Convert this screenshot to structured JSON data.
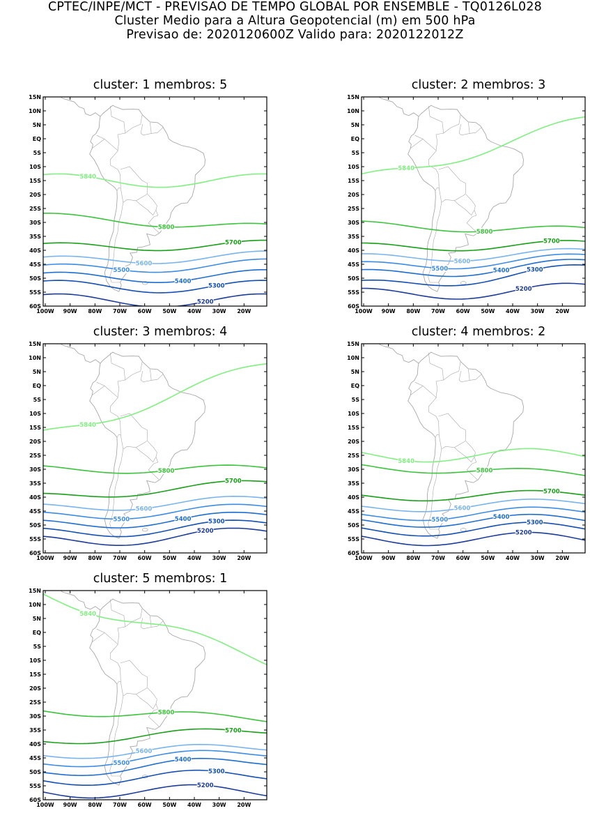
{
  "header": {
    "line1": "CPTEC/INPE/MCT - PREVISAO DE TEMPO GLOBAL POR ENSEMBLE - TQ0126L028",
    "line2": "Cluster Medio para a Altura Geopotencial (m) em 500 hPa",
    "line3": "Previsao de: 2020120600Z    Valido para: 2020122012Z"
  },
  "axes": {
    "lat_labels": [
      "15N",
      "10N",
      "5N",
      "EQ",
      "5S",
      "10S",
      "15S",
      "20S",
      "25S",
      "30S",
      "35S",
      "40S",
      "45S",
      "50S",
      "55S",
      "60S"
    ],
    "lon_labels": [
      "100W",
      "90W",
      "80W",
      "70W",
      "60W",
      "50W",
      "40W",
      "30W",
      "20W"
    ]
  },
  "colors": {
    "c5840": "#80f080",
    "c5800": "#3cc43c",
    "c5700": "#18a018",
    "c5600": "#78b4ee",
    "c5500": "#3c8ce6",
    "c5400": "#1e6ed2",
    "c5300": "#1450b4",
    "c5200": "#1c3c9c",
    "c5100": "#5a32b4",
    "coast": "#a8a8a8",
    "frame": "#000000"
  },
  "panels": [
    {
      "title": "cluster: 1   membros: 5",
      "contours": [
        {
          "value": "5840",
          "label": "5840",
          "lat_w": -15,
          "lat_e": -15
        },
        {
          "value": "5800",
          "label": "5800",
          "lat_w": -28,
          "lat_e": -32
        },
        {
          "value": "5700",
          "label": "5700",
          "lat_w": -39,
          "lat_e": -38
        },
        {
          "value": "5600",
          "label": "5600",
          "lat_w": -44,
          "lat_e": -42
        },
        {
          "value": "5500",
          "label": "5500",
          "lat_w": -47,
          "lat_e": -45
        },
        {
          "value": "5400",
          "label": "5400",
          "lat_w": -50,
          "lat_e": -49
        },
        {
          "value": "5300",
          "label": "5300",
          "lat_w": -53,
          "lat_e": -53
        },
        {
          "value": "5200",
          "label": "5200",
          "lat_w": -58,
          "lat_e": -58
        }
      ]
    },
    {
      "title": "cluster: 2   membros: 3",
      "contours": [
        {
          "value": "5840",
          "label": "5840",
          "lat_w": -15,
          "lat_e": 6
        },
        {
          "value": "5800",
          "label": "5800",
          "lat_w": -31,
          "lat_e": -33
        },
        {
          "value": "5700",
          "label": "5700",
          "lat_w": -39,
          "lat_e": -38
        },
        {
          "value": "5600",
          "label": "5600",
          "lat_w": -43,
          "lat_e": -41
        },
        {
          "value": "5500",
          "label": "5500",
          "lat_w": -46,
          "lat_e": -43
        },
        {
          "value": "5400",
          "label": "5400",
          "lat_w": -49,
          "lat_e": -45
        },
        {
          "value": "5300",
          "label": "5300",
          "lat_w": -53,
          "lat_e": -47
        },
        {
          "value": "5200",
          "label": "5200",
          "lat_w": -56,
          "lat_e": -54
        }
      ]
    },
    {
      "title": "cluster: 3   membros: 4",
      "contours": [
        {
          "value": "5840",
          "label": "5840",
          "lat_w": -18,
          "lat_e": 7
        },
        {
          "value": "5800",
          "label": "5800",
          "lat_w": -30,
          "lat_e": -30
        },
        {
          "value": "5700",
          "label": "5700",
          "lat_w": -40,
          "lat_e": -35
        },
        {
          "value": "5600",
          "label": "5600",
          "lat_w": -44,
          "lat_e": -41
        },
        {
          "value": "5500",
          "label": "5500",
          "lat_w": -47,
          "lat_e": -44
        },
        {
          "value": "5400",
          "label": "5400",
          "lat_w": -50,
          "lat_e": -47
        },
        {
          "value": "5300",
          "label": "5300",
          "lat_w": -53,
          "lat_e": -50
        },
        {
          "value": "5200",
          "label": "5200",
          "lat_w": -56,
          "lat_e": -53
        }
      ]
    },
    {
      "title": "cluster: 4   membros: 2",
      "contours": [
        {
          "value": "5840",
          "label": "5840",
          "lat_w": -25,
          "lat_e": -25
        },
        {
          "value": "5800",
          "label": "5800",
          "lat_w": -29,
          "lat_e": -32
        },
        {
          "value": "5700",
          "label": "5700",
          "lat_w": -40,
          "lat_e": -39
        },
        {
          "value": "5600",
          "label": "5600",
          "lat_w": -44,
          "lat_e": -42
        },
        {
          "value": "5500",
          "label": "5500",
          "lat_w": -47,
          "lat_e": -45
        },
        {
          "value": "5400",
          "label": "5400",
          "lat_w": -49,
          "lat_e": -48
        },
        {
          "value": "5300",
          "label": "5300",
          "lat_w": -52,
          "lat_e": -51
        },
        {
          "value": "5200",
          "label": "5200",
          "lat_w": -55,
          "lat_e": -55
        }
      ]
    },
    {
      "title": "cluster: 5   membros: 1",
      "contours": [
        {
          "value": "5840",
          "label": "5840",
          "lat_w": 14,
          "lat_e": -10
        },
        {
          "value": "5800",
          "label": "5800",
          "lat_w": -28,
          "lat_e": -31
        },
        {
          "value": "5700",
          "label": "5700",
          "lat_w": -39,
          "lat_e": -35
        },
        {
          "value": "5600",
          "label": "5600",
          "lat_w": -44,
          "lat_e": -41
        },
        {
          "value": "5500",
          "label": "5500",
          "lat_w": -47,
          "lat_e": -43
        },
        {
          "value": "5400",
          "label": "5400",
          "lat_w": -50,
          "lat_e": -46
        },
        {
          "value": "5300",
          "label": "5300",
          "lat_w": -53,
          "lat_e": -51
        },
        {
          "value": "5200",
          "label": "5200",
          "lat_w": -57,
          "lat_e": -57
        }
      ]
    }
  ]
}
